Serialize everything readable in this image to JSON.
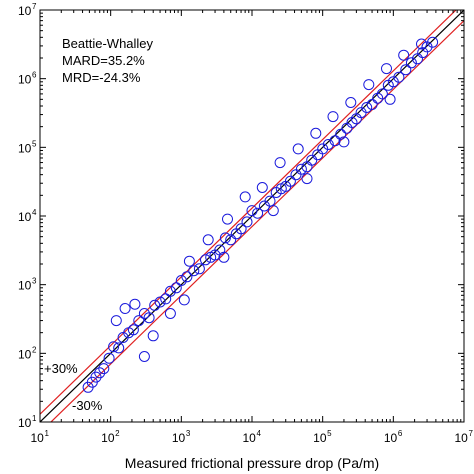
{
  "chart_data": {
    "type": "scatter",
    "xscale": "log",
    "yscale": "log",
    "xlim": [
      10,
      10000000
    ],
    "ylim": [
      10,
      10000000
    ],
    "xlabel": "Measured frictional pressure drop (Pa/m)",
    "ylabel": "",
    "x_tick_base": "10",
    "x_tick_exponents": [
      "1",
      "2",
      "3",
      "4",
      "5",
      "6",
      "7"
    ],
    "y_tick_base": "10",
    "y_tick_exponents": [
      "1",
      "2",
      "3",
      "4",
      "5",
      "6",
      "7"
    ],
    "annotation_lines": [
      "Beattie-Whalley",
      "MARD=35.2%",
      "MRD=-24.3%"
    ],
    "lines": [
      {
        "label": "",
        "factor": 1.0,
        "color": "#000000"
      },
      {
        "label": "+30%",
        "factor": 1.3,
        "color": "#e02020"
      },
      {
        "label": "-30%",
        "factor": 0.7,
        "color": "#e02020"
      }
    ],
    "line_labels": {
      "plus": "+30%",
      "minus": "-30%"
    },
    "marker": {
      "shape": "open-circle",
      "color": "#1a1adc"
    },
    "series": [
      {
        "x": [
          48,
          55,
          62,
          70,
          80,
          95,
          110,
          130,
          150,
          180,
          210,
          250,
          300,
          350,
          420,
          500,
          600,
          700,
          850,
          1000,
          1200,
          1500,
          1800,
          2200,
          2600,
          3000,
          3500,
          4200,
          5000,
          6000,
          7000,
          8500,
          10000,
          12000,
          15000,
          18000,
          22000,
          26000,
          30000,
          35000,
          42000,
          50000,
          60000,
          70000,
          85000,
          100000,
          120000,
          150000,
          180000,
          220000,
          260000,
          300000,
          350000,
          420000,
          500000,
          600000,
          700000,
          850000,
          1000000,
          1200000,
          1500000,
          1800000,
          2200000,
          2600000,
          3000000,
          3600000,
          120,
          160,
          220,
          400,
          700,
          1300,
          2400,
          4500,
          8000,
          14000,
          25000,
          45000,
          80000,
          140000,
          250000,
          450000,
          800000,
          1400000,
          2500000,
          300,
          1100,
          4000,
          20000,
          60000,
          200000,
          900000
        ],
        "y": [
          32,
          38,
          45,
          52,
          60,
          85,
          125,
          120,
          170,
          200,
          220,
          300,
          380,
          330,
          500,
          560,
          620,
          800,
          900,
          1150,
          1300,
          1600,
          1700,
          2300,
          2500,
          2700,
          3200,
          4800,
          4500,
          5500,
          6500,
          8200,
          12000,
          11000,
          14000,
          16500,
          22000,
          25000,
          27000,
          32000,
          40000,
          48000,
          52000,
          65000,
          78000,
          95000,
          110000,
          125000,
          155000,
          190000,
          230000,
          260000,
          320000,
          380000,
          420000,
          520000,
          600000,
          800000,
          900000,
          1050000,
          1350000,
          1700000,
          1950000,
          2400000,
          2900000,
          3400000,
          300,
          450,
          520,
          180,
          380,
          2200,
          4500,
          9000,
          19000,
          26000,
          60000,
          95000,
          160000,
          280000,
          450000,
          820000,
          1400000,
          2200000,
          3200000,
          90,
          600,
          2500,
          12000,
          35000,
          120000,
          500000
        ]
      }
    ]
  }
}
